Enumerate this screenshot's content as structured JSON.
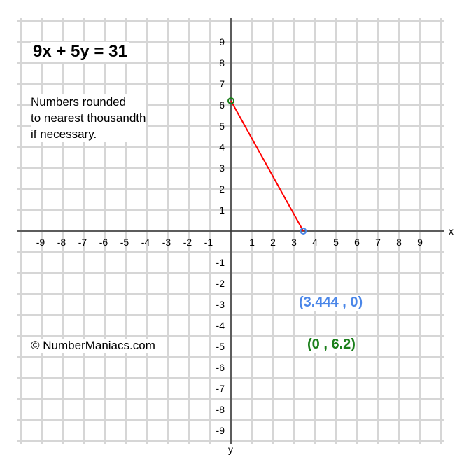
{
  "chart_data": {
    "type": "line",
    "title": "9x + 5y = 31",
    "note": "Numbers rounded\nto nearest thousandth\nif necessary.",
    "xlabel": "x",
    "ylabel": "y",
    "xlim": [
      -10,
      10
    ],
    "ylim": [
      -10,
      10
    ],
    "grid": true,
    "x_ticks": [
      -9,
      -8,
      -7,
      -6,
      -5,
      -4,
      -3,
      -2,
      -1,
      1,
      2,
      3,
      4,
      5,
      6,
      7,
      8,
      9
    ],
    "y_ticks": [
      -9,
      -8,
      -7,
      -6,
      -5,
      -4,
      -3,
      -2,
      -1,
      1,
      2,
      3,
      4,
      5,
      6,
      7,
      8,
      9
    ],
    "series": [
      {
        "points": [
          [
            0,
            6.2
          ],
          [
            3.444,
            0
          ]
        ],
        "color": "#ff0000"
      }
    ],
    "intercepts": [
      {
        "label": "(3.444 , 0)",
        "x": 3.444,
        "y": 0,
        "color": "#4a86e8"
      },
      {
        "label": "(0 , 6.2)",
        "x": 0,
        "y": 6.2,
        "color": "#1a7f1a"
      }
    ]
  },
  "copyright": "© NumberManiacs.com"
}
